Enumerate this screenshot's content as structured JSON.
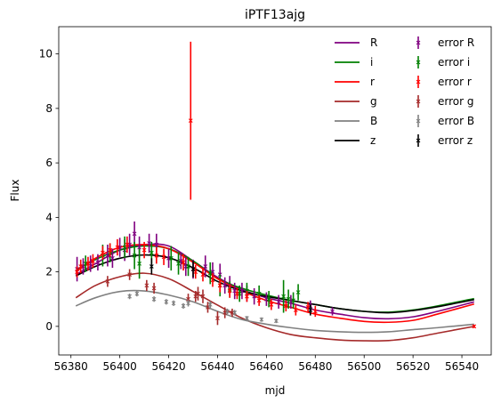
{
  "chart_data": {
    "type": "line",
    "title": "iPTF13ajg",
    "xlabel": "mjd",
    "ylabel": "Flux",
    "xlim": [
      56375,
      56552
    ],
    "ylim": [
      -1.05,
      11.0
    ],
    "xticks": [
      56380,
      56400,
      56420,
      56440,
      56460,
      56480,
      56500,
      56520,
      56540
    ],
    "yticks": [
      0,
      2,
      4,
      6,
      8,
      10
    ],
    "grid": false,
    "legend": "top-right",
    "series": [
      {
        "name": "R",
        "color": "#800080",
        "curve_x": [
          56382,
          56390,
          56400,
          56410,
          56420,
          56430,
          56440,
          56450,
          56460,
          56470,
          56480,
          56490,
          56500,
          56510,
          56520,
          56530,
          56545
        ],
        "curve_y": [
          1.9,
          2.3,
          2.8,
          3.0,
          2.95,
          2.4,
          1.8,
          1.35,
          1.05,
          0.85,
          0.6,
          0.45,
          0.32,
          0.28,
          0.35,
          0.55,
          0.9
        ]
      },
      {
        "name": "i",
        "color": "#008000",
        "curve_x": [
          56382,
          56390,
          56400,
          56410,
          56420,
          56430,
          56440,
          56450,
          56460,
          56470,
          56480,
          56490,
          56500,
          56510,
          56520,
          56530,
          56545
        ],
        "curve_y": [
          2.05,
          2.45,
          2.8,
          2.95,
          2.85,
          2.4,
          1.75,
          1.4,
          1.15,
          0.95,
          0.8,
          0.65,
          0.55,
          0.52,
          0.6,
          0.75,
          1.02
        ]
      },
      {
        "name": "r",
        "color": "#ff0000",
        "curve_x": [
          56382,
          56390,
          56400,
          56410,
          56420,
          56430,
          56440,
          56450,
          56460,
          56470,
          56480,
          56490,
          56500,
          56510,
          56520,
          56530,
          56545
        ],
        "curve_y": [
          2.0,
          2.5,
          2.9,
          3.0,
          2.85,
          2.35,
          1.75,
          1.3,
          0.95,
          0.7,
          0.45,
          0.3,
          0.18,
          0.15,
          0.22,
          0.45,
          0.82
        ]
      },
      {
        "name": "g",
        "color": "#a52a2a",
        "curve_x": [
          56382,
          56390,
          56400,
          56410,
          56420,
          56430,
          56440,
          56450,
          56460,
          56470,
          56480,
          56490,
          56500,
          56510,
          56520,
          56530,
          56545
        ],
        "curve_y": [
          1.05,
          1.5,
          1.82,
          1.95,
          1.75,
          1.28,
          0.78,
          0.3,
          -0.05,
          -0.3,
          -0.42,
          -0.5,
          -0.53,
          -0.52,
          -0.42,
          -0.25,
          0.0
        ]
      },
      {
        "name": "B",
        "color": "#808080",
        "curve_x": [
          56382,
          56390,
          56400,
          56410,
          56420,
          56430,
          56440,
          56450,
          56460,
          56470,
          56480,
          56490,
          56500,
          56510,
          56520,
          56530,
          56545
        ],
        "curve_y": [
          0.75,
          1.05,
          1.28,
          1.3,
          1.15,
          0.9,
          0.55,
          0.25,
          0.08,
          -0.05,
          -0.15,
          -0.2,
          -0.22,
          -0.2,
          -0.12,
          -0.05,
          0.08
        ]
      },
      {
        "name": "z",
        "color": "#000000",
        "curve_x": [
          56382,
          56390,
          56400,
          56410,
          56420,
          56430,
          56440,
          56450,
          56460,
          56470,
          56480,
          56490,
          56500,
          56510,
          56520,
          56530,
          56545
        ],
        "curve_y": [
          1.85,
          2.2,
          2.5,
          2.62,
          2.52,
          2.15,
          1.65,
          1.3,
          1.1,
          0.95,
          0.8,
          0.65,
          0.55,
          0.5,
          0.58,
          0.72,
          0.98
        ]
      }
    ],
    "errors": [
      {
        "name": "error R",
        "color": "#800080",
        "points": [
          [
            56382.5,
            2.1,
            0.45
          ],
          [
            56385,
            2.2,
            0.3
          ],
          [
            56388,
            2.3,
            0.3
          ],
          [
            56391,
            2.35,
            0.3
          ],
          [
            56395,
            2.6,
            0.4
          ],
          [
            56397,
            2.5,
            0.35
          ],
          [
            56400,
            2.9,
            0.35
          ],
          [
            56402,
            2.8,
            0.4
          ],
          [
            56404,
            3.0,
            0.4
          ],
          [
            56406,
            3.4,
            0.45
          ],
          [
            56408,
            2.9,
            0.4
          ],
          [
            56412,
            3.05,
            0.35
          ],
          [
            56415,
            3.0,
            0.4
          ],
          [
            56420,
            2.5,
            0.35
          ],
          [
            56425,
            2.4,
            0.3
          ],
          [
            56427,
            2.2,
            0.35
          ],
          [
            56430,
            2.1,
            0.35
          ],
          [
            56435,
            2.2,
            0.4
          ],
          [
            56438,
            2.0,
            0.35
          ],
          [
            56441,
            1.9,
            0.4
          ],
          [
            56443,
            1.5,
            0.3
          ],
          [
            56445,
            1.5,
            0.35
          ],
          [
            56447,
            1.3,
            0.3
          ],
          [
            56450,
            1.3,
            0.3
          ],
          [
            56452,
            1.2,
            0.3
          ],
          [
            56455,
            1.1,
            0.3
          ],
          [
            56460,
            1.0,
            0.25
          ],
          [
            56465,
            0.9,
            0.25
          ],
          [
            56470,
            0.9,
            0.25
          ],
          [
            56478,
            0.75,
            0.2
          ],
          [
            56487,
            0.55,
            0.15
          ]
        ]
      },
      {
        "name": "error i",
        "color": "#008000",
        "points": [
          [
            56386,
            2.3,
            0.3
          ],
          [
            56393,
            2.6,
            0.4
          ],
          [
            56396,
            2.7,
            0.35
          ],
          [
            56402,
            2.9,
            0.4
          ],
          [
            56406,
            2.6,
            0.5
          ],
          [
            56408,
            2.3,
            0.55
          ],
          [
            56413,
            2.7,
            0.4
          ],
          [
            56421,
            2.5,
            0.45
          ],
          [
            56424,
            2.3,
            0.4
          ],
          [
            56428,
            2.2,
            0.35
          ],
          [
            56437,
            1.95,
            0.4
          ],
          [
            56441,
            1.5,
            0.4
          ],
          [
            56445,
            1.35,
            0.3
          ],
          [
            56449,
            1.2,
            0.3
          ],
          [
            56452,
            1.3,
            0.3
          ],
          [
            56457,
            1.2,
            0.3
          ],
          [
            56461,
            1.0,
            0.3
          ],
          [
            56467,
            1.1,
            0.6
          ],
          [
            56469,
            1.0,
            0.35
          ],
          [
            56471,
            0.95,
            0.3
          ],
          [
            56473,
            1.25,
            0.3
          ]
        ]
      },
      {
        "name": "error r",
        "color": "#ff0000",
        "points": [
          [
            56382.5,
            2.0,
            0.2
          ],
          [
            56384,
            2.2,
            0.25
          ],
          [
            56387,
            2.3,
            0.25
          ],
          [
            56389,
            2.4,
            0.25
          ],
          [
            56393,
            2.7,
            0.25
          ],
          [
            56396,
            2.8,
            0.25
          ],
          [
            56399,
            2.9,
            0.3
          ],
          [
            56403,
            3.0,
            0.3
          ],
          [
            56410,
            2.8,
            0.3
          ],
          [
            56415,
            2.6,
            0.3
          ],
          [
            56418,
            2.55,
            0.3
          ],
          [
            56426,
            2.35,
            0.3
          ],
          [
            56429,
            7.55,
            2.9
          ],
          [
            56431,
            2.0,
            0.25
          ],
          [
            56434,
            1.9,
            0.25
          ],
          [
            56438,
            1.7,
            0.25
          ],
          [
            56441,
            1.5,
            0.25
          ],
          [
            56445,
            1.3,
            0.25
          ],
          [
            56448,
            1.2,
            0.2
          ],
          [
            56452,
            1.1,
            0.2
          ],
          [
            56457,
            0.95,
            0.2
          ],
          [
            56462,
            0.8,
            0.2
          ],
          [
            56468,
            0.75,
            0.2
          ],
          [
            56472,
            0.6,
            0.2
          ],
          [
            56477,
            0.7,
            0.2
          ],
          [
            56480,
            0.55,
            0.2
          ],
          [
            56545,
            0.0,
            0.06
          ]
        ]
      },
      {
        "name": "error g",
        "color": "#a52a2a",
        "points": [
          [
            56395,
            1.65,
            0.2
          ],
          [
            56404,
            1.9,
            0.2
          ],
          [
            56411,
            1.5,
            0.2
          ],
          [
            56414,
            1.4,
            0.2
          ],
          [
            56428,
            1.0,
            0.2
          ],
          [
            56431,
            1.1,
            0.2
          ],
          [
            56432,
            1.2,
            0.25
          ],
          [
            56434,
            1.1,
            0.25
          ],
          [
            56436,
            0.7,
            0.2
          ],
          [
            56440,
            0.3,
            0.25
          ],
          [
            56443,
            0.5,
            0.2
          ],
          [
            56446,
            0.5,
            0.15
          ]
        ]
      },
      {
        "name": "error B",
        "color": "#808080",
        "points": [
          [
            56404,
            1.1,
            0.1
          ],
          [
            56407,
            1.2,
            0.1
          ],
          [
            56414,
            1.0,
            0.1
          ],
          [
            56419,
            0.9,
            0.1
          ],
          [
            56422,
            0.85,
            0.1
          ],
          [
            56426,
            0.75,
            0.1
          ],
          [
            56428,
            0.85,
            0.12
          ],
          [
            56437,
            0.8,
            0.12
          ],
          [
            56444,
            0.55,
            0.1
          ],
          [
            56447,
            0.5,
            0.1
          ],
          [
            56452,
            0.3,
            0.08
          ],
          [
            56458,
            0.25,
            0.08
          ],
          [
            56464,
            0.2,
            0.08
          ]
        ]
      },
      {
        "name": "error z",
        "color": "#000000",
        "points": [
          [
            56413,
            2.2,
            0.3
          ],
          [
            56430,
            2.1,
            0.3
          ],
          [
            56478,
            0.6,
            0.2
          ]
        ]
      }
    ]
  }
}
